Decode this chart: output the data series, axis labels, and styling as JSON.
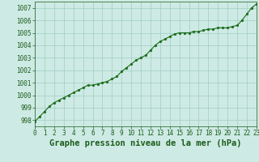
{
  "x_values": [
    0,
    0.5,
    1,
    1.5,
    2,
    2.5,
    3,
    3.5,
    4,
    4.5,
    5,
    5.5,
    6,
    6.5,
    7,
    7.5,
    8,
    8.5,
    9,
    9.5,
    10,
    10.5,
    11,
    11.5,
    12,
    12.5,
    13,
    13.5,
    14,
    14.5,
    15,
    15.5,
    16,
    16.5,
    17,
    17.5,
    18,
    18.5,
    19,
    19.5,
    20,
    20.5,
    21,
    21.5,
    22,
    22.5,
    23
  ],
  "y_values": [
    997.9,
    998.3,
    998.7,
    999.1,
    999.4,
    999.6,
    999.8,
    1000.0,
    1000.2,
    1000.4,
    1000.6,
    1000.8,
    1000.8,
    1000.9,
    1001.0,
    1001.1,
    1001.3,
    1001.5,
    1001.9,
    1002.2,
    1002.5,
    1002.8,
    1003.0,
    1003.2,
    1003.6,
    1004.0,
    1004.3,
    1004.5,
    1004.7,
    1004.9,
    1005.0,
    1005.0,
    1005.0,
    1005.1,
    1005.1,
    1005.2,
    1005.3,
    1005.3,
    1005.4,
    1005.4,
    1005.4,
    1005.5,
    1005.6,
    1006.0,
    1006.5,
    1007.0,
    1007.3
  ],
  "line_color": "#1a6b1a",
  "marker_color": "#1a6b1a",
  "bg_color": "#ceeae4",
  "grid_color": "#9ecec4",
  "axis_label_color": "#1a5c1a",
  "tick_label_color": "#1a5c1a",
  "xlim": [
    0,
    23
  ],
  "ylim": [
    997.5,
    1007.5
  ],
  "yticks": [
    998,
    999,
    1000,
    1001,
    1002,
    1003,
    1004,
    1005,
    1006,
    1007
  ],
  "xticks": [
    0,
    1,
    2,
    3,
    4,
    5,
    6,
    7,
    8,
    9,
    10,
    11,
    12,
    13,
    14,
    15,
    16,
    17,
    18,
    19,
    20,
    21,
    22,
    23
  ],
  "xtick_labels": [
    "0",
    "1",
    "2",
    "3",
    "4",
    "5",
    "6",
    "7",
    "8",
    "9",
    "10",
    "11",
    "12",
    "13",
    "14",
    "15",
    "16",
    "17",
    "18",
    "19",
    "20",
    "21",
    "22",
    "23"
  ],
  "xlabel": "Graphe pression niveau de la mer (hPa)",
  "tick_fontsize": 5.5,
  "xlabel_fontsize": 7.5
}
